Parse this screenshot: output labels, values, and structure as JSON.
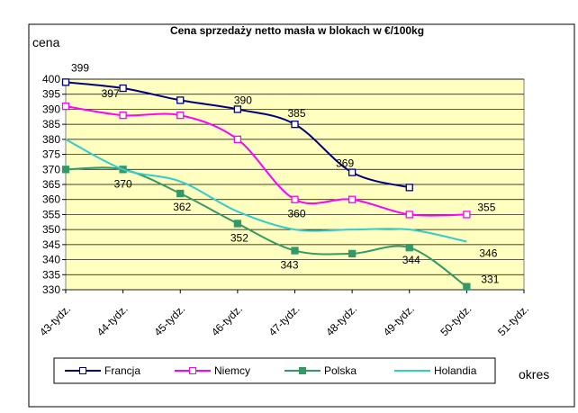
{
  "chart_data": {
    "type": "line",
    "title": "Cena sprzedaży netto masła w blokach w €/100kg",
    "y_label": "cena",
    "x_label": "okres",
    "categories": [
      "43-tydz.",
      "44-tydz.",
      "45-tydz.",
      "46-tydz.",
      "47-tydz.",
      "48-tydz.",
      "49-tydz.",
      "50-tydz.",
      "51-tydz."
    ],
    "ylim": [
      330,
      400
    ],
    "yticks": [
      330,
      335,
      340,
      345,
      350,
      355,
      360,
      365,
      370,
      375,
      380,
      385,
      390,
      395,
      400
    ],
    "grid": true,
    "legend": "bottom",
    "series": [
      {
        "name": "Francja",
        "color": "#000080",
        "marker": "square-open",
        "values": [
          399,
          397,
          393,
          390,
          385,
          369,
          364,
          null,
          null
        ],
        "value_labels": [
          "399",
          "397",
          null,
          "390",
          "385",
          "369",
          null,
          null,
          null
        ]
      },
      {
        "name": "Niemcy",
        "color": "#ff00ff",
        "marker": "square-open",
        "values": [
          391,
          388,
          388,
          380,
          360,
          360,
          355,
          355,
          null
        ],
        "value_labels": [
          null,
          null,
          null,
          null,
          "360",
          null,
          null,
          "355",
          null
        ]
      },
      {
        "name": "Polska",
        "color": "#339966",
        "marker": "square",
        "values": [
          370,
          370,
          362,
          352,
          343,
          342,
          344,
          331,
          null
        ],
        "value_labels": [
          null,
          "370",
          "362",
          "352",
          "343",
          null,
          "344",
          "331",
          null
        ]
      },
      {
        "name": "Holandia",
        "color": "#33cccc",
        "marker": "none",
        "values": [
          380,
          370,
          366,
          356,
          350,
          350,
          350,
          346,
          null
        ],
        "value_labels": [
          null,
          null,
          null,
          null,
          null,
          null,
          null,
          "346",
          null
        ]
      }
    ]
  }
}
